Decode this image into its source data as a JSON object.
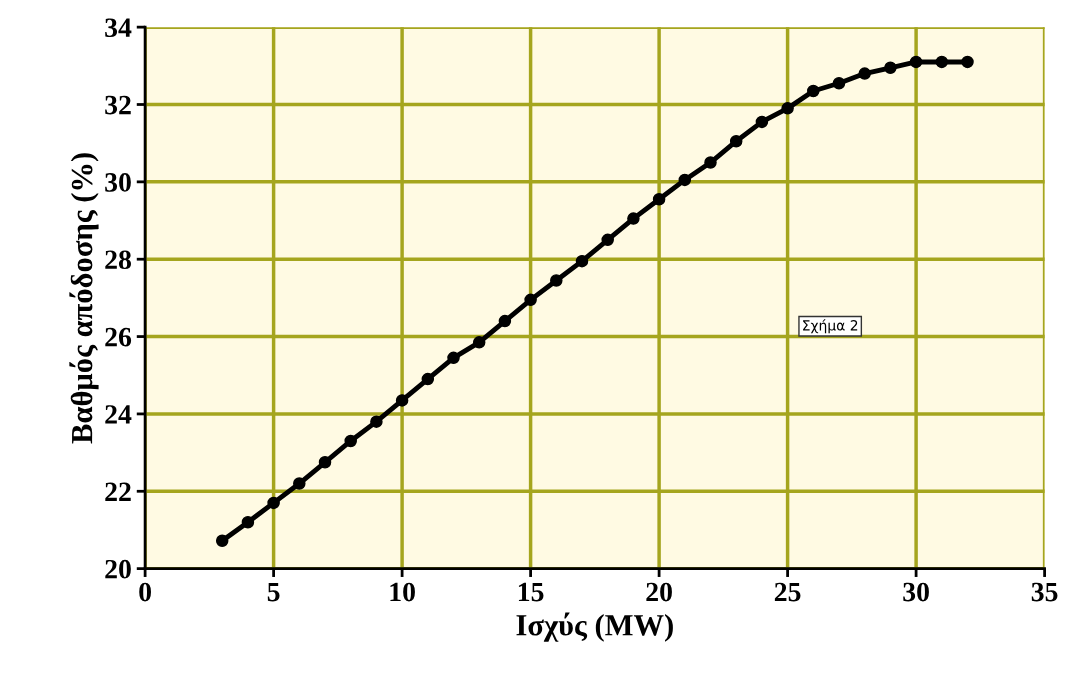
{
  "chart_data": {
    "type": "line",
    "xlabel": "Ισχύς (MW)",
    "ylabel": "Βαθμός απόδοσης (%)",
    "x": [
      3,
      4,
      5,
      6,
      7,
      8,
      9,
      10,
      11,
      12,
      13,
      14,
      15,
      16,
      17,
      18,
      19,
      20,
      21,
      22,
      23,
      24,
      25,
      26,
      27,
      28,
      29,
      30,
      31,
      32
    ],
    "series": [
      {
        "color": "#000000",
        "values": [
          20.72,
          21.2,
          21.7,
          22.2,
          22.75,
          23.3,
          23.8,
          24.35,
          24.9,
          25.45,
          25.85,
          26.4,
          26.95,
          27.45,
          27.95,
          28.5,
          29.05,
          29.55,
          30.05,
          30.5,
          31.05,
          31.55,
          31.9,
          32.35,
          32.55,
          32.8,
          32.95,
          33.1,
          33.1,
          33.1
        ]
      }
    ],
    "xlim": [
      0,
      35
    ],
    "ylim": [
      20,
      34
    ],
    "xticks": [
      0,
      5,
      10,
      15,
      20,
      25,
      30,
      35
    ],
    "yticks": [
      20,
      22,
      24,
      26,
      28,
      30,
      32,
      34
    ],
    "grid": true,
    "marker": "circle",
    "line_style": "solid",
    "annotations": [
      "Σχήμα 2"
    ]
  }
}
